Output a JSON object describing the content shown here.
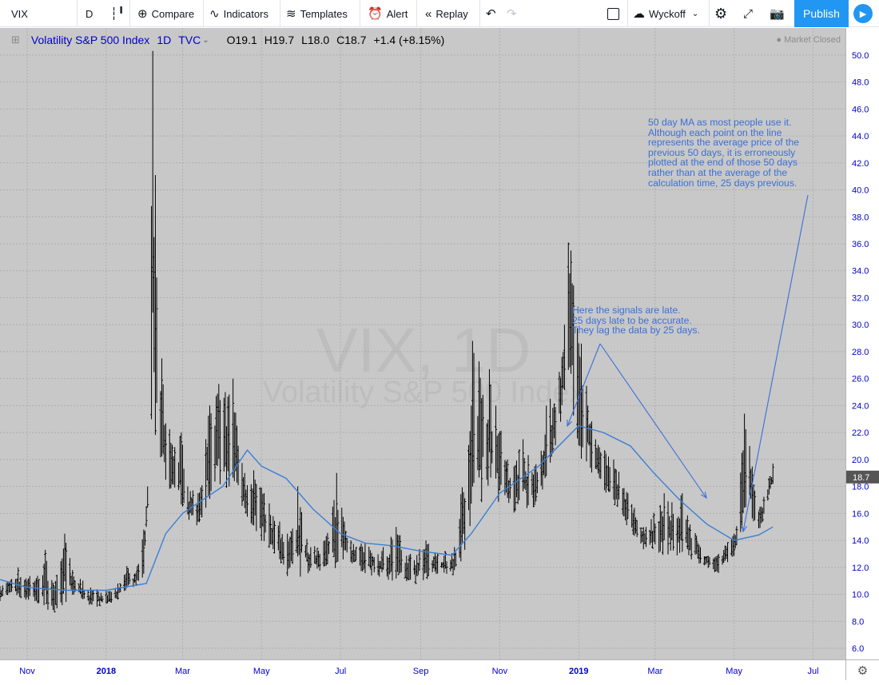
{
  "toolbar": {
    "symbol": "VIX",
    "interval": "D",
    "compare": "Compare",
    "indicators": "Indicators",
    "templates": "Templates",
    "alert": "Alert",
    "replay": "Replay",
    "layout_name": "Wyckoff",
    "publish": "Publish"
  },
  "legend": {
    "name": "Volatility S&P 500 Index",
    "interval": "1D",
    "exchange": "TVC",
    "open": "O19.1",
    "high": "H19.7",
    "low": "L18.0",
    "close": "C18.7",
    "change": "+1.4 (+8.15%)"
  },
  "market_status": "Market Closed",
  "watermark": {
    "symbol": "VIX, 1D",
    "name": "Volatility S&P 500 Index"
  },
  "annotations": {
    "ma_note": "50 day MA as most people use it.\nAlthough each point on the line\nrepresents the average price of the\nprevious 50 days, it is erroneously\nplotted at the end of those 50 days\nrather than at the average of the\ncalculation time, 25 days previous.",
    "lag_note": "Here the signals are late.\n25 days late to be accurate.\nThey lag the data by 25 days."
  },
  "colors": {
    "background": "#c8c8c8",
    "bars": "#000000",
    "ma_line": "#3b7fd6",
    "annotation": "#3b6fd8",
    "last_price_tag": "#555555",
    "accent": "#2196f3"
  },
  "chart_data": {
    "type": "line",
    "title": "Volatility S&P 500 Index",
    "bar_style": "ohlc",
    "ylim": [
      6,
      51
    ],
    "y_ticks": [
      6.0,
      8.0,
      10.0,
      12.0,
      14.0,
      16.0,
      18.0,
      20.0,
      22.0,
      24.0,
      26.0,
      28.0,
      30.0,
      32.0,
      34.0,
      36.0,
      38.0,
      40.0,
      42.0,
      44.0,
      46.0,
      48.0,
      50.0
    ],
    "x_ticks": [
      {
        "label": "Nov",
        "date": "2017-11-01"
      },
      {
        "label": "2018",
        "date": "2018-01-01"
      },
      {
        "label": "Mar",
        "date": "2018-03-01"
      },
      {
        "label": "May",
        "date": "2018-05-01"
      },
      {
        "label": "Jul",
        "date": "2018-07-01"
      },
      {
        "label": "Sep",
        "date": "2018-09-01"
      },
      {
        "label": "Nov",
        "date": "2018-11-01"
      },
      {
        "label": "2019",
        "date": "2019-01-01"
      },
      {
        "label": "Mar",
        "date": "2019-03-01"
      },
      {
        "label": "May",
        "date": "2019-05-01"
      },
      {
        "label": "Jul",
        "date": "2019-07-01"
      }
    ],
    "xlim": [
      "2017-10-11",
      "2019-07-26"
    ],
    "last_price": 18.7,
    "grid": true,
    "series": [
      {
        "name": "VIX",
        "high": [
          [
            "2017-10-11",
            10.6
          ],
          [
            "2017-10-25",
            12.0
          ],
          [
            "2017-11-08",
            11.2
          ],
          [
            "2017-11-15",
            13.3
          ],
          [
            "2017-11-22",
            10.6
          ],
          [
            "2017-11-30",
            14.5
          ],
          [
            "2017-12-06",
            11.8
          ],
          [
            "2017-12-20",
            10.5
          ],
          [
            "2018-01-03",
            10.2
          ],
          [
            "2018-01-10",
            10.8
          ],
          [
            "2018-01-17",
            12.1
          ],
          [
            "2018-01-24",
            11.6
          ],
          [
            "2018-01-30",
            14.8
          ],
          [
            "2018-02-02",
            18.0
          ],
          [
            "2018-02-05",
            38.8
          ],
          [
            "2018-02-06",
            50.3
          ],
          [
            "2018-02-07",
            36.5
          ],
          [
            "2018-02-08",
            41.1
          ],
          [
            "2018-02-09",
            33.5
          ],
          [
            "2018-02-13",
            27.5
          ],
          [
            "2018-02-21",
            21.1
          ],
          [
            "2018-02-28",
            22.0
          ],
          [
            "2018-03-05",
            18.0
          ],
          [
            "2018-03-13",
            17.5
          ],
          [
            "2018-03-22",
            24.0
          ],
          [
            "2018-03-29",
            25.6
          ],
          [
            "2018-04-03",
            25.0
          ],
          [
            "2018-04-09",
            26.0
          ],
          [
            "2018-04-18",
            19.0
          ],
          [
            "2018-04-25",
            19.2
          ],
          [
            "2018-05-03",
            17.5
          ],
          [
            "2018-05-21",
            14.5
          ],
          [
            "2018-05-29",
            18.0
          ],
          [
            "2018-06-08",
            13.5
          ],
          [
            "2018-06-19",
            14.0
          ],
          [
            "2018-06-28",
            19.0
          ],
          [
            "2018-07-09",
            14.0
          ],
          [
            "2018-07-20",
            13.8
          ],
          [
            "2018-08-03",
            13.5
          ],
          [
            "2018-08-13",
            15.0
          ],
          [
            "2018-08-24",
            13.0
          ],
          [
            "2018-09-05",
            14.0
          ],
          [
            "2018-09-14",
            13.0
          ],
          [
            "2018-09-27",
            13.5
          ],
          [
            "2018-10-10",
            24.0
          ],
          [
            "2018-10-11",
            28.8
          ],
          [
            "2018-10-24",
            26.7
          ],
          [
            "2018-11-07",
            20.0
          ],
          [
            "2018-11-19",
            21.5
          ],
          [
            "2018-11-28",
            19.5
          ],
          [
            "2018-12-07",
            24.0
          ],
          [
            "2018-12-17",
            26.5
          ],
          [
            "2018-12-21",
            30.0
          ],
          [
            "2018-12-24",
            36.1
          ],
          [
            "2018-12-26",
            35.5
          ],
          [
            "2019-01-03",
            28.6
          ],
          [
            "2019-01-14",
            21.5
          ],
          [
            "2019-01-28",
            20.0
          ],
          [
            "2019-02-08",
            17.5
          ],
          [
            "2019-02-22",
            15.0
          ],
          [
            "2019-03-08",
            17.5
          ],
          [
            "2019-03-22",
            17.5
          ],
          [
            "2019-04-05",
            13.5
          ],
          [
            "2019-04-19",
            13.0
          ],
          [
            "2019-05-01",
            14.5
          ],
          [
            "2019-05-07",
            20.5
          ],
          [
            "2019-05-09",
            23.4
          ],
          [
            "2019-05-13",
            21.0
          ],
          [
            "2019-05-21",
            16.5
          ],
          [
            "2019-05-31",
            19.7
          ]
        ],
        "low": [
          [
            "2017-10-11",
            9.5
          ],
          [
            "2017-10-25",
            9.6
          ],
          [
            "2017-11-08",
            9.3
          ],
          [
            "2017-11-22",
            8.6
          ],
          [
            "2017-12-06",
            9.8
          ],
          [
            "2017-12-20",
            9.0
          ],
          [
            "2018-01-03",
            9.2
          ],
          [
            "2018-01-17",
            10.0
          ],
          [
            "2018-01-30",
            11.0
          ],
          [
            "2018-02-06",
            22.0
          ],
          [
            "2018-02-13",
            18.5
          ],
          [
            "2018-02-21",
            17.0
          ],
          [
            "2018-03-05",
            15.5
          ],
          [
            "2018-03-13",
            15.0
          ],
          [
            "2018-03-22",
            17.0
          ],
          [
            "2018-04-09",
            17.5
          ],
          [
            "2018-04-25",
            14.8
          ],
          [
            "2018-05-21",
            11.0
          ],
          [
            "2018-06-08",
            11.5
          ],
          [
            "2018-07-09",
            12.0
          ],
          [
            "2018-08-03",
            11.0
          ],
          [
            "2018-08-24",
            10.5
          ],
          [
            "2018-09-14",
            11.5
          ],
          [
            "2018-09-27",
            11.2
          ],
          [
            "2018-10-24",
            17.5
          ],
          [
            "2018-11-07",
            16.0
          ],
          [
            "2018-11-28",
            16.0
          ],
          [
            "2018-12-07",
            17.5
          ],
          [
            "2018-12-24",
            25.0
          ],
          [
            "2019-01-03",
            20.0
          ],
          [
            "2019-01-28",
            16.5
          ],
          [
            "2019-02-22",
            13.0
          ],
          [
            "2019-03-22",
            12.8
          ],
          [
            "2019-04-19",
            11.5
          ],
          [
            "2019-05-01",
            12.7
          ],
          [
            "2019-05-13",
            15.5
          ],
          [
            "2019-05-21",
            14.5
          ],
          [
            "2019-05-31",
            18.0
          ]
        ]
      },
      {
        "name": "50 day MA",
        "values": [
          [
            "2017-10-11",
            11.1
          ],
          [
            "2017-11-01",
            10.5
          ],
          [
            "2017-12-01",
            10.3
          ],
          [
            "2018-01-01",
            10.3
          ],
          [
            "2018-02-01",
            10.8
          ],
          [
            "2018-02-16",
            14.5
          ],
          [
            "2018-03-01",
            16.0
          ],
          [
            "2018-04-01",
            18.0
          ],
          [
            "2018-04-20",
            20.7
          ],
          [
            "2018-05-01",
            19.5
          ],
          [
            "2018-05-20",
            18.6
          ],
          [
            "2018-06-10",
            16.3
          ],
          [
            "2018-07-01",
            14.5
          ],
          [
            "2018-07-20",
            13.8
          ],
          [
            "2018-08-10",
            13.6
          ],
          [
            "2018-09-01",
            13.2
          ],
          [
            "2018-09-25",
            12.9
          ],
          [
            "2018-10-10",
            14.5
          ],
          [
            "2018-11-01",
            17.5
          ],
          [
            "2018-12-01",
            19.5
          ],
          [
            "2019-01-01",
            22.5
          ],
          [
            "2019-01-20",
            22.0
          ],
          [
            "2019-02-10",
            21.0
          ],
          [
            "2019-02-28",
            19.0
          ],
          [
            "2019-03-20",
            17.0
          ],
          [
            "2019-04-10",
            15.2
          ],
          [
            "2019-05-01",
            14.0
          ],
          [
            "2019-05-20",
            14.4
          ],
          [
            "2019-05-31",
            15.0
          ]
        ]
      }
    ]
  }
}
